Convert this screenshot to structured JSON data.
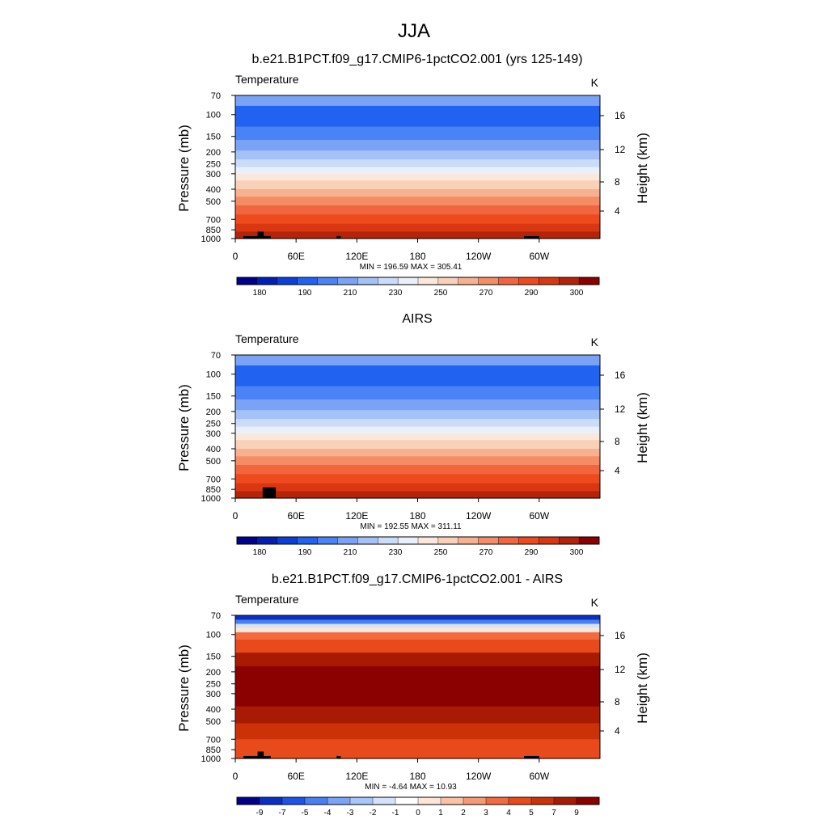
{
  "title": "JJA",
  "panels": [
    {
      "title": "b.e21.B1PCT.f09_g17.CMIP6-1pctCO2.001 (yrs 125-149)",
      "left_label": "Temperature",
      "right_label": "K",
      "stats": "MIN = 196.59  MAX = 305.41",
      "kind": "abs"
    },
    {
      "title": "AIRS",
      "left_label": "Temperature",
      "right_label": "K",
      "stats": "MIN = 192.55  MAX = 311.11",
      "kind": "abs"
    },
    {
      "title": "b.e21.B1PCT.f09_g17.CMIP6-1pctCO2.001 - AIRS",
      "left_label": "Temperature",
      "right_label": "K",
      "stats": "MIN =  -4.64  MAX =  10.93",
      "kind": "diff"
    }
  ],
  "chart_data": {
    "type": "heatmap",
    "xlabel": "",
    "ylabel": "Pressure (mb)",
    "y2label": "Height (km)",
    "x_ticks": [
      "0",
      "60E",
      "120E",
      "180",
      "120W",
      "60W"
    ],
    "x_tick_values": [
      0,
      60,
      120,
      180,
      240,
      300
    ],
    "xlim": [
      0,
      360
    ],
    "y_ticks": [
      "70",
      "100",
      "150",
      "200",
      "250",
      "300",
      "400",
      "500",
      "700",
      "850",
      "1000"
    ],
    "y_tick_values": [
      70,
      100,
      150,
      200,
      250,
      300,
      400,
      500,
      700,
      850,
      1000
    ],
    "ylim": [
      1000,
      70
    ],
    "y_scale": "log",
    "y2_ticks": [
      "4",
      "8",
      "12",
      "16"
    ],
    "y2_tick_values": [
      4,
      8,
      12,
      16
    ],
    "abs_levels": [
      "180",
      "190",
      "210",
      "230",
      "250",
      "270",
      "290",
      "300"
    ],
    "diff_levels": [
      "-9",
      "-7",
      "-5",
      "-4",
      "-3",
      "-2",
      "-1",
      "0",
      "1",
      "2",
      "3",
      "4",
      "5",
      "7",
      "9"
    ],
    "abs_colors": [
      "#00008b",
      "#0020b4",
      "#0a3fd8",
      "#2262f0",
      "#4a83f5",
      "#7aa3f6",
      "#a4c2f7",
      "#cadcfa",
      "#eaf0fb",
      "#fbe8dc",
      "#f9d0b8",
      "#f7b090",
      "#f58c66",
      "#f2663f",
      "#ee4a1e",
      "#d93712",
      "#b42408",
      "#8b0000"
    ],
    "diff_colors": [
      "#00008b",
      "#0a2fc4",
      "#1e53ea",
      "#4a7ff2",
      "#7aa4f5",
      "#a9c6f8",
      "#d4e3fb",
      "#ffffff",
      "#fde6d8",
      "#f9c4a6",
      "#f59a73",
      "#f26a40",
      "#e94a1c",
      "#cc3208",
      "#a81a02",
      "#8b0000"
    ]
  }
}
